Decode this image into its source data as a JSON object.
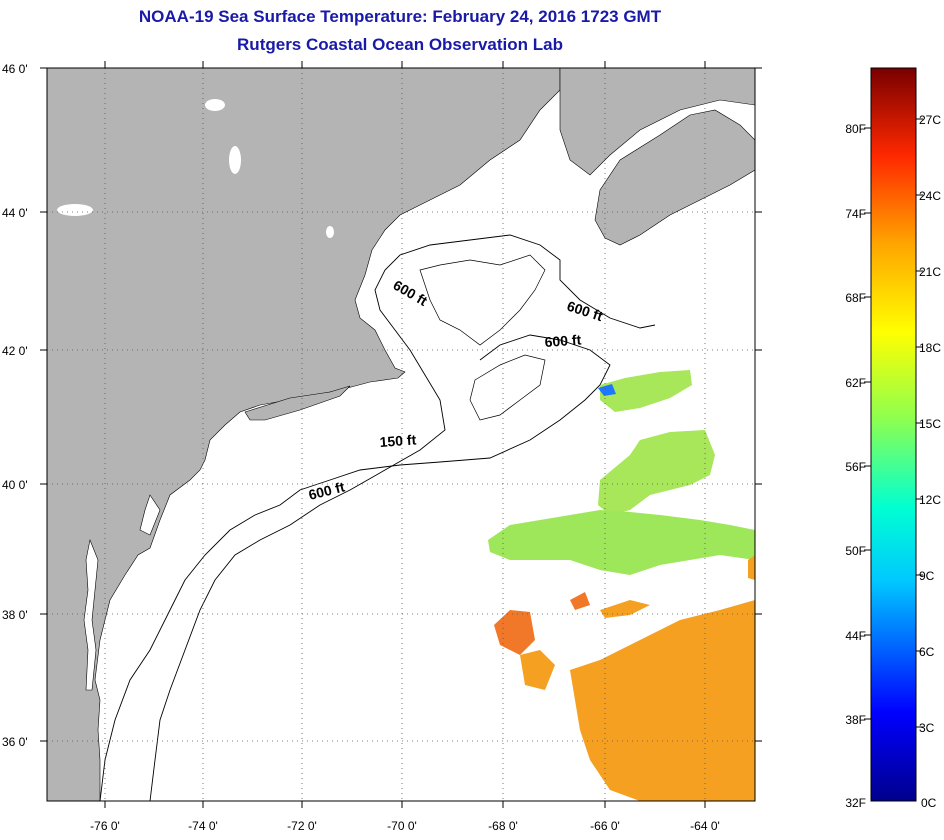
{
  "title": {
    "line1": "NOAA-19 Sea Surface Temperature:  February 24, 2016 1723 GMT",
    "line2": "Rutgers Coastal Ocean Observation Lab"
  },
  "map": {
    "lat_labels": [
      "46 0'",
      "44 0'",
      "42 0'",
      "40 0'",
      "38 0'",
      "36 0'"
    ],
    "lon_labels": [
      "-76 0'",
      "-74 0'",
      "-72 0'",
      "-70 0'",
      "-68 0'",
      "-66 0'",
      "-64 0'"
    ],
    "contour_labels": [
      "600 ft",
      "600 ft",
      "600 ft",
      "150 ft",
      "600 ft"
    ],
    "land_color": "#b4b4b4",
    "ocean_color": "#ffffff"
  },
  "colorbar": {
    "fahrenheit": [
      "80F",
      "74F",
      "68F",
      "62F",
      "56F",
      "50F",
      "44F",
      "38F",
      "32F"
    ],
    "celsius": [
      "27C",
      "24C",
      "21C",
      "18C",
      "15C",
      "12C",
      "9C",
      "6C",
      "3C",
      "0C"
    ]
  }
}
